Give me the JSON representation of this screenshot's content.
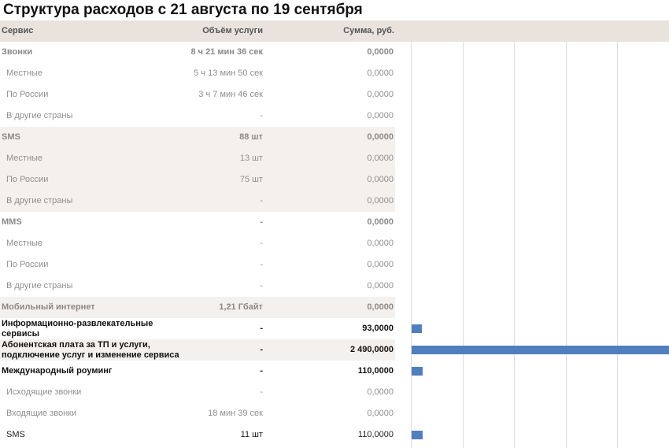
{
  "title": "Структура расходов с 21 августа по 19 сентября",
  "header": {
    "service": "Сервис",
    "volume": "Объём услуги",
    "sum": "Сумма, руб."
  },
  "rows": [
    {
      "name": "Звонки",
      "volume": "8 ч 21 мин 36 сек",
      "sum": "0,0000"
    },
    {
      "name": "Местные",
      "volume": "5 ч 13 мин 50 сек",
      "sum": "0,0000"
    },
    {
      "name": "По России",
      "volume": "3 ч 7 мин 46 сек",
      "sum": "0,0000"
    },
    {
      "name": "В другие страны",
      "volume": "-",
      "sum": "0,0000"
    },
    {
      "name": "SMS",
      "volume": "88 шт",
      "sum": "0,0000"
    },
    {
      "name": "Местные",
      "volume": "13 шт",
      "sum": "0,0000"
    },
    {
      "name": "По России",
      "volume": "75 шт",
      "sum": "0,0000"
    },
    {
      "name": "В другие страны",
      "volume": "-",
      "sum": "0,0000"
    },
    {
      "name": "MMS",
      "volume": "-",
      "sum": "0,0000"
    },
    {
      "name": "Местные",
      "volume": "-",
      "sum": "0,0000"
    },
    {
      "name": "По России",
      "volume": "-",
      "sum": "0,0000"
    },
    {
      "name": "В другие страны",
      "volume": "-",
      "sum": "0,0000"
    },
    {
      "name": "Мобильный интернет",
      "volume": "1,21 Гбайт",
      "sum": "0,0000"
    },
    {
      "name": "Информационно-развлекательные сервисы",
      "volume": "-",
      "sum": "93,0000"
    },
    {
      "name": "Абонентская плата за ТП и услуги, подключение услуг и изменение сервиса",
      "volume": "-",
      "sum": "2 490,0000"
    },
    {
      "name": "Международный роуминг",
      "volume": "-",
      "sum": "110,0000"
    },
    {
      "name": "Исходящие звонки",
      "volume": "-",
      "sum": "0,0000"
    },
    {
      "name": "Входящие звонки",
      "volume": "18 мин 39 сек",
      "sum": "0,0000"
    },
    {
      "name": "SMS",
      "volume": "11 шт",
      "sum": "110,0000"
    }
  ],
  "chart_data": {
    "type": "bar",
    "orientation": "horizontal",
    "categories": [
      "Звонки",
      "Местные",
      "По России",
      "В другие страны",
      "SMS",
      "Местные",
      "По России",
      "В другие страны",
      "MMS",
      "Местные",
      "По России",
      "В другие страны",
      "Мобильный интернет",
      "Информационно-развлекательные сервисы",
      "Абонентская плата за ТП и услуги, подключение услуг и изменение сервиса",
      "Международный роуминг",
      "Исходящие звонки",
      "Входящие звонки",
      "SMS"
    ],
    "values": [
      0,
      0,
      0,
      0,
      0,
      0,
      0,
      0,
      0,
      0,
      0,
      0,
      0,
      93,
      2490,
      110,
      0,
      0,
      110
    ],
    "xlim": [
      0,
      2490
    ],
    "grid": true,
    "bar_color": "#4f7fbf"
  }
}
